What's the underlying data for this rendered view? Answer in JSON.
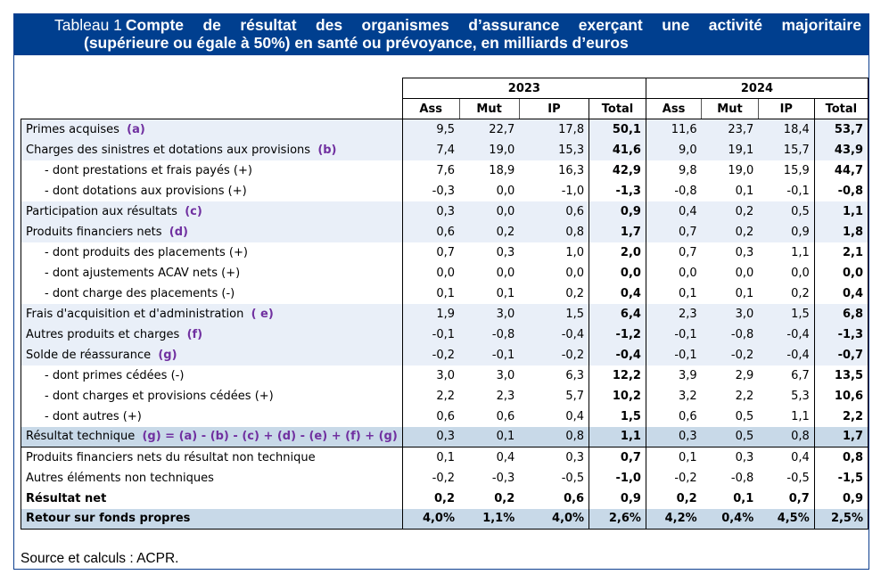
{
  "title": {
    "label": "Tableau 1",
    "line1": "Compte de résultat des organismes d’assurance exerçant une activité majoritaire",
    "line2": "(supérieure ou égale à 50%) en santé ou prévoyance, en milliards d’euros"
  },
  "colors": {
    "title_bg": "#003f8f",
    "tag": "#7030a0",
    "row_highlight": "#e9eff8",
    "row_highlight_strong": "#c8d9e8"
  },
  "header": {
    "years": [
      "2023",
      "2024"
    ],
    "columns": [
      "Ass",
      "Mut",
      "IP",
      "Total",
      "Ass",
      "Mut",
      "IP",
      "Total"
    ]
  },
  "rows": [
    {
      "label": "Primes acquises",
      "tag": "(a)",
      "values": [
        "9,5",
        "22,7",
        "17,8",
        "50,1",
        "11,6",
        "23,7",
        "18,4",
        "53,7"
      ]
    },
    {
      "label": "Charges des sinistres et dotations aux provisions",
      "tag": "(b)",
      "values": [
        "7,4",
        "19,0",
        "15,3",
        "41,6",
        "9,0",
        "19,1",
        "15,7",
        "43,9"
      ]
    },
    {
      "label": "- dont prestations et frais payés (+)",
      "tag": "",
      "values": [
        "7,6",
        "18,9",
        "16,3",
        "42,9",
        "9,8",
        "19,0",
        "15,9",
        "44,7"
      ]
    },
    {
      "label": "- dont dotations aux provisions (+)",
      "tag": "",
      "values": [
        "-0,3",
        "0,0",
        "-1,0",
        "-1,3",
        "-0,8",
        "0,1",
        "-0,1",
        "-0,8"
      ]
    },
    {
      "label": "Participation aux résultats",
      "tag": "(c)",
      "values": [
        "0,3",
        "0,0",
        "0,6",
        "0,9",
        "0,4",
        "0,2",
        "0,5",
        "1,1"
      ]
    },
    {
      "label": "Produits financiers nets",
      "tag": "(d)",
      "values": [
        "0,6",
        "0,2",
        "0,8",
        "1,7",
        "0,7",
        "0,2",
        "0,9",
        "1,8"
      ]
    },
    {
      "label": "- dont produits des placements (+)",
      "tag": "",
      "values": [
        "0,7",
        "0,3",
        "1,0",
        "2,0",
        "0,7",
        "0,3",
        "1,1",
        "2,1"
      ]
    },
    {
      "label": "- dont ajustements ACAV  nets (+)",
      "tag": "",
      "values": [
        "0,0",
        "0,0",
        "0,0",
        "0,0",
        "0,0",
        "0,0",
        "0,0",
        "0,0"
      ]
    },
    {
      "label": "- dont charge des placements (-)",
      "tag": "",
      "values": [
        "0,1",
        "0,1",
        "0,2",
        "0,4",
        "0,1",
        "0,1",
        "0,2",
        "0,4"
      ]
    },
    {
      "label": "Frais d'acquisition et d'administration",
      "tag": "( e)",
      "values": [
        "1,9",
        "3,0",
        "1,5",
        "6,4",
        "2,3",
        "3,0",
        "1,5",
        "6,8"
      ]
    },
    {
      "label": "Autres produits et charges",
      "tag": "(f)",
      "values": [
        "-0,1",
        "-0,8",
        "-0,4",
        "-1,2",
        "-0,1",
        "-0,8",
        "-0,4",
        "-1,3"
      ]
    },
    {
      "label": "Solde de réassurance",
      "tag": "(g)",
      "values": [
        "-0,2",
        "-0,1",
        "-0,2",
        "-0,4",
        "-0,1",
        "-0,2",
        "-0,4",
        "-0,7"
      ]
    },
    {
      "label": "- dont primes cédées (-)",
      "tag": "",
      "values": [
        "3,0",
        "3,0",
        "6,3",
        "12,2",
        "3,9",
        "2,9",
        "6,7",
        "13,5"
      ]
    },
    {
      "label": "- dont charges et provisions cédées (+)",
      "tag": "",
      "values": [
        "2,2",
        "2,3",
        "5,7",
        "10,2",
        "3,2",
        "2,2",
        "5,3",
        "10,6"
      ]
    },
    {
      "label": "- dont autres (+)",
      "tag": "",
      "values": [
        "0,6",
        "0,6",
        "0,4",
        "1,5",
        "0,6",
        "0,5",
        "1,1",
        "2,2"
      ]
    },
    {
      "label": "Résultat technique",
      "tag": "(g) = (a) - (b) - (c) + (d) - (e) + (f) + (g)",
      "values": [
        "0,3",
        "0,1",
        "0,8",
        "1,1",
        "0,3",
        "0,5",
        "0,8",
        "1,7"
      ]
    },
    {
      "label": "Produits financiers nets du résultat non technique",
      "tag": "",
      "values": [
        "0,1",
        "0,4",
        "0,3",
        "0,7",
        "0,1",
        "0,3",
        "0,4",
        "0,8"
      ]
    },
    {
      "label": "Autres éléments non techniques",
      "tag": "",
      "values": [
        "-0,2",
        "-0,3",
        "-0,5",
        "-1,0",
        "-0,2",
        "-0,8",
        "-0,5",
        "-1,5"
      ]
    },
    {
      "label": "Résultat net",
      "tag": "",
      "values": [
        "0,2",
        "0,2",
        "0,6",
        "0,9",
        "0,2",
        "0,1",
        "0,7",
        "0,9"
      ]
    },
    {
      "label": "Retour sur fonds propres",
      "tag": "",
      "values": [
        "4,0%",
        "1,1%",
        "4,0%",
        "2,6%",
        "4,2%",
        "0,4%",
        "4,5%",
        "2,5%"
      ]
    }
  ],
  "source": "Source et calculs : ACPR."
}
